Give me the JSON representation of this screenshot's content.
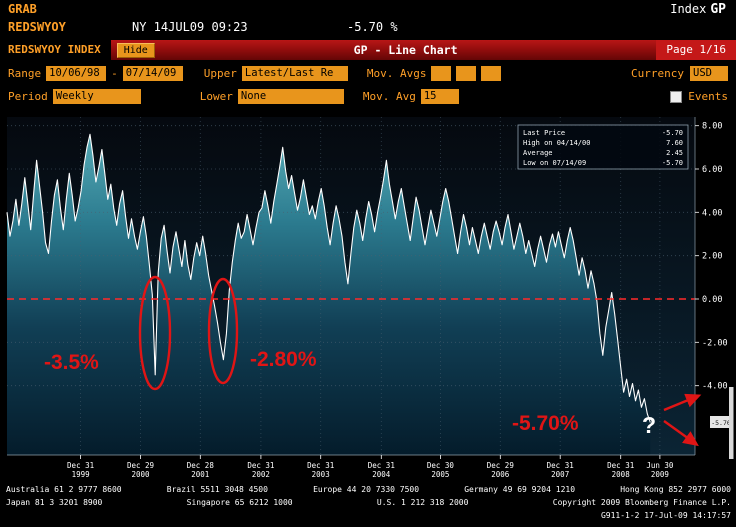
{
  "header": {
    "grab": "GRAB",
    "index_label": "Index",
    "gp_label": "GP",
    "ticker": "REDSWYOY",
    "session": "NY 14JUL09 09:23",
    "change": "-5.70 %"
  },
  "title_bar": {
    "security": "REDSWYOY INDEX",
    "hide_button": "Hide",
    "title": "GP - Line Chart",
    "page": "Page 1/16"
  },
  "controls": {
    "range_label": "Range",
    "range_start": "10/06/98",
    "range_separator": "-",
    "range_end": "07/14/09",
    "upper_label": "Upper",
    "upper_value": "Latest/Last Re",
    "mov_avgs_label": "Mov. Avgs",
    "currency_label": "Currency",
    "currency_value": "USD",
    "period_label": "Period",
    "period_value": "Weekly",
    "lower_label": "Lower",
    "lower_value": "None",
    "mov_avg_label": "Mov. Avg",
    "mov_avg_value": "15",
    "events_label": "Events"
  },
  "legend": {
    "rows": [
      {
        "label": "Last Price",
        "value": "-5.70"
      },
      {
        "label": "High on 04/14/00",
        "value": "7.60"
      },
      {
        "label": "Average",
        "value": "2.45"
      },
      {
        "label": "Low on 07/14/09",
        "value": "-5.70"
      }
    ]
  },
  "annotations": {
    "dip1_label": "-3.5%",
    "dip2_label": "-2.80%",
    "drop_label": "-5.70%",
    "question_mark": "?",
    "axis_tag": "-5.70"
  },
  "colors": {
    "amber": "#ffa028",
    "annotation_red": "#e01515",
    "zero_line": "#ff2a2a",
    "line_white": "#ffffff",
    "title_bar_red": "#8c0c0c"
  },
  "chart_data": {
    "type": "line",
    "title": "REDSWYOY INDEX GP - Line Chart",
    "x_start": "10/06/98",
    "x_end": "07/14/09",
    "ylim": [
      -7.2,
      8.4
    ],
    "yticks": [
      8,
      6,
      4,
      2,
      0,
      -2,
      -4
    ],
    "zero_line": 0,
    "x_extent": 0.935,
    "grid": true,
    "legend_position": "top-right",
    "x_ticks": [
      {
        "date": "Dec 31",
        "year": "1999",
        "pos": 0.107
      },
      {
        "date": "Dec 29",
        "year": "2000",
        "pos": 0.194
      },
      {
        "date": "Dec 28",
        "year": "2001",
        "pos": 0.281
      },
      {
        "date": "Dec 31",
        "year": "2002",
        "pos": 0.369
      },
      {
        "date": "Dec 31",
        "year": "2003",
        "pos": 0.456
      },
      {
        "date": "Dec 31",
        "year": "2004",
        "pos": 0.544
      },
      {
        "date": "Dec 30",
        "year": "2005",
        "pos": 0.63
      },
      {
        "date": "Dec 29",
        "year": "2006",
        "pos": 0.717
      },
      {
        "date": "Dec 31",
        "year": "2007",
        "pos": 0.804
      },
      {
        "date": "Dec 31",
        "year": "2008",
        "pos": 0.892
      },
      {
        "date": "Jun 30",
        "year": "2009",
        "pos": 0.949
      }
    ],
    "values": [
      4.0,
      2.9,
      3.6,
      4.6,
      3.4,
      4.4,
      5.6,
      4.4,
      3.2,
      4.9,
      6.4,
      5.2,
      4.0,
      2.6,
      2.1,
      3.6,
      4.8,
      5.5,
      4.2,
      3.2,
      4.6,
      5.8,
      4.8,
      3.6,
      4.2,
      5.0,
      6.2,
      7.0,
      7.6,
      6.6,
      5.4,
      6.1,
      6.9,
      5.8,
      4.6,
      5.3,
      4.2,
      3.4,
      4.4,
      5.0,
      3.8,
      2.8,
      3.7,
      2.9,
      2.3,
      3.1,
      3.8,
      2.9,
      1.6,
      0.2,
      -3.5,
      1.2,
      2.8,
      3.4,
      2.2,
      1.2,
      2.4,
      3.1,
      2.3,
      1.5,
      2.7,
      1.6,
      0.9,
      1.9,
      2.6,
      2.0,
      2.9,
      2.1,
      1.1,
      0.4,
      -0.3,
      -1.1,
      -2.0,
      -2.8,
      -1.6,
      0.4,
      1.7,
      2.7,
      3.5,
      2.8,
      3.1,
      3.9,
      3.2,
      2.5,
      3.3,
      4.0,
      4.2,
      5.0,
      4.3,
      3.5,
      4.5,
      5.3,
      6.1,
      7.0,
      5.9,
      5.1,
      5.7,
      4.9,
      4.1,
      4.7,
      5.5,
      4.7,
      3.9,
      4.3,
      3.7,
      4.5,
      5.1,
      4.3,
      3.3,
      2.5,
      3.5,
      4.3,
      3.7,
      2.9,
      1.7,
      0.7,
      2.1,
      3.3,
      4.1,
      3.5,
      2.7,
      3.7,
      4.5,
      3.9,
      3.1,
      4.0,
      4.7,
      5.5,
      6.4,
      5.3,
      4.5,
      3.7,
      4.5,
      5.1,
      4.3,
      3.5,
      2.7,
      3.7,
      4.7,
      4.1,
      3.3,
      2.5,
      3.3,
      4.1,
      3.5,
      2.9,
      3.7,
      4.5,
      5.1,
      4.5,
      3.7,
      2.9,
      2.1,
      3.1,
      3.9,
      3.3,
      2.5,
      3.3,
      2.7,
      2.1,
      2.9,
      3.5,
      2.9,
      2.3,
      3.1,
      3.6,
      3.1,
      2.5,
      3.3,
      3.9,
      3.1,
      2.3,
      2.9,
      3.5,
      2.9,
      2.1,
      2.7,
      2.1,
      1.5,
      2.3,
      2.9,
      2.3,
      1.7,
      2.5,
      3.0,
      2.4,
      3.1,
      2.5,
      1.9,
      2.7,
      3.3,
      2.7,
      1.9,
      1.1,
      1.9,
      1.3,
      0.5,
      1.3,
      0.7,
      -0.1,
      -1.6,
      -2.6,
      -1.3,
      -0.5,
      0.3,
      -0.7,
      -1.9,
      -3.1,
      -4.3,
      -3.7,
      -4.5,
      -3.9,
      -4.7,
      -4.2,
      -5.0,
      -4.6,
      -5.3,
      -5.7
    ]
  },
  "footer": {
    "line1": [
      "Australia 61 2 9777 8600",
      "Brazil 5511 3048 4500",
      "Europe 44 20 7330 7500",
      "Germany 49 69 9204 1210",
      "Hong Kong 852 2977 6000"
    ],
    "line2": [
      "Japan 81 3 3201 8900",
      "Singapore 65 6212 1000",
      "U.S. 1 212 318 2000",
      "Copyright 2009 Bloomberg Finance L.P."
    ],
    "line3": "G911-1-2 17-Jul-09 14:17:57"
  }
}
